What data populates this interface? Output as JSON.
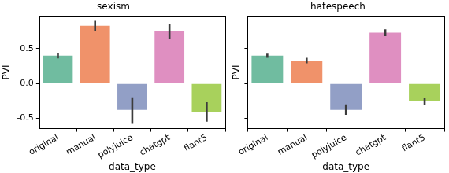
{
  "chart_data": [
    {
      "type": "bar",
      "title": "sexism",
      "x_label": "data_type",
      "y_label": "PVI",
      "categories": [
        "original",
        "manual",
        "polyjuice",
        "chatgpt",
        "flant5"
      ],
      "values": [
        0.4,
        0.83,
        -0.38,
        0.75,
        -0.41
      ],
      "error_bars": [
        [
          0.36,
          0.44
        ],
        [
          0.76,
          0.9
        ],
        [
          -0.58,
          -0.2
        ],
        [
          0.64,
          0.85
        ],
        [
          -0.55,
          -0.27
        ]
      ],
      "colors": [
        "#70bca0",
        "#f0926a",
        "#929fc6",
        "#df8fc1",
        "#a8d15c"
      ],
      "ylim": [
        -0.65,
        0.97
      ],
      "yticks": [
        -0.5,
        {
          "value": 0,
          "label": "0.0"
        },
        0.5
      ],
      "grid": false
    },
    {
      "type": "bar",
      "title": "hatespeech",
      "x_label": "data_type",
      "y_label": "PVI",
      "categories": [
        "original",
        "manual",
        "polyjuice",
        "chatgpt",
        "flant5"
      ],
      "values": [
        0.4,
        0.33,
        -0.38,
        0.73,
        -0.26
      ],
      "error_bars": [
        [
          0.37,
          0.43
        ],
        [
          0.29,
          0.37
        ],
        [
          -0.45,
          -0.3
        ],
        [
          0.68,
          0.78
        ],
        [
          -0.31,
          -0.21
        ]
      ],
      "colors": [
        "#70bca0",
        "#f0926a",
        "#929fc6",
        "#df8fc1",
        "#a8d15c"
      ],
      "ylim": [
        -0.65,
        0.97
      ],
      "yticks": [
        -0.5,
        {
          "value": 0,
          "label": "0.0"
        },
        0.5
      ],
      "grid": false,
      "tick_labels": "x"
    }
  ]
}
